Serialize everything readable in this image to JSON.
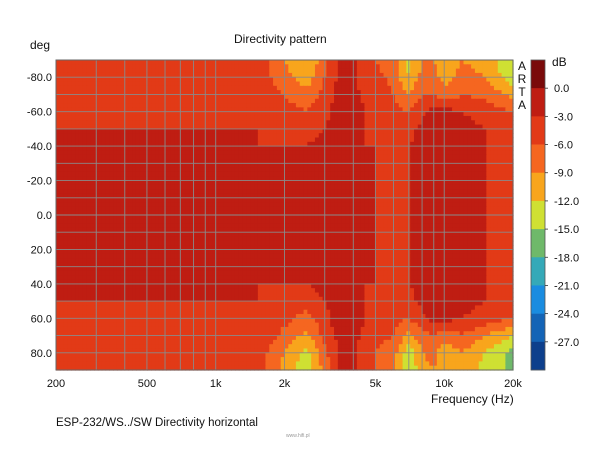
{
  "chart_data": {
    "type": "heatmap",
    "title": "Directivity pattern",
    "y_unit_label": "deg",
    "xlabel": "Frequency (Hz)",
    "x_scale": "log",
    "xlim": [
      200,
      20000
    ],
    "x_tick_labels": [
      {
        "value": 200,
        "label": "200"
      },
      {
        "value": 500,
        "label": "500"
      },
      {
        "value": 1000,
        "label": "1k"
      },
      {
        "value": 2000,
        "label": "2k"
      },
      {
        "value": 5000,
        "label": "5k"
      },
      {
        "value": 10000,
        "label": "10k"
      },
      {
        "value": 20000,
        "label": "20k"
      }
    ],
    "y_tick_labels": [
      {
        "value": -80,
        "label": "-80.0"
      },
      {
        "value": -60,
        "label": "-60.0"
      },
      {
        "value": -40,
        "label": "-40.0"
      },
      {
        "value": -20,
        "label": "-20.0"
      },
      {
        "value": 0,
        "label": "0.0"
      },
      {
        "value": 20,
        "label": "20.0"
      },
      {
        "value": 40,
        "label": "40.0"
      },
      {
        "value": 60,
        "label": "60.0"
      },
      {
        "value": 80,
        "label": "80.0"
      }
    ],
    "ylim": [
      -90,
      90
    ],
    "colorbar": {
      "unit": "dB",
      "labels": [
        "0.0",
        "-3.0",
        "-6.0",
        "-9.0",
        "-12.0",
        "-15.0",
        "-18.0",
        "-21.0",
        "-24.0",
        "-27.0"
      ],
      "colors": [
        "#7a0a0a",
        "#bf1d12",
        "#e23a17",
        "#f56620",
        "#f8a51c",
        "#cfe033",
        "#6fb96a",
        "#35a9b8",
        "#1a8ce0",
        "#1464b6",
        "#0d3f8c"
      ]
    },
    "levels": {
      "freq_hz": [
        200,
        300,
        500,
        700,
        1000,
        1500,
        2000,
        2500,
        3000,
        3500,
        4000,
        4500,
        5000,
        6000,
        7000,
        8000,
        9000,
        10000,
        12000,
        15000,
        20000
      ],
      "angles_deg": [
        -90,
        -80,
        -70,
        -60,
        -50,
        -40,
        -30,
        -20,
        -10,
        0,
        10,
        20,
        30,
        40,
        50,
        60,
        70,
        80,
        90
      ],
      "db": [
        [
          -3,
          -3,
          -3,
          -3,
          -3,
          -4,
          -9,
          -12,
          -7,
          -2,
          -2,
          -6,
          -6,
          -8,
          -13,
          -9,
          -9,
          -12,
          -9,
          -10,
          -15
        ],
        [
          -3,
          -3,
          -3,
          -3,
          -3,
          -4,
          -8,
          -11,
          -6,
          -2,
          -2,
          -5,
          -5,
          -7,
          -12,
          -8,
          -8,
          -10,
          -8,
          -9,
          -14
        ],
        [
          -3,
          -3,
          -3,
          -3,
          -3,
          -3,
          -6,
          -8,
          -5,
          -2,
          -2,
          -4,
          -4,
          -6,
          -9,
          -6,
          -6,
          -8,
          -6,
          -7,
          -10
        ],
        [
          -3,
          -3,
          -3,
          -3,
          -3,
          -3,
          -5,
          -6,
          -4,
          -1,
          -1,
          -3,
          -4,
          -5,
          -6,
          -4,
          -1,
          -2,
          -3,
          -4,
          -6
        ],
        [
          -3,
          -3,
          -3,
          -3,
          -3,
          -3,
          -4,
          -4,
          -3,
          -1,
          -1,
          -3,
          -4,
          -4,
          -4,
          -2,
          -1,
          -1,
          -2,
          -3,
          -4
        ],
        [
          -2,
          -2,
          -2,
          -2,
          -2,
          -3,
          -3,
          -3,
          -2,
          -1,
          -1,
          -3,
          -3,
          -4,
          -3,
          -2,
          -1,
          -1,
          -2,
          -3,
          -4
        ],
        [
          -2,
          -2,
          -2,
          -2,
          -2,
          -2,
          -2,
          -2,
          -2,
          -1,
          -1,
          -2,
          -3,
          -3,
          -3,
          -2,
          -1,
          -1,
          -2,
          -3,
          -4
        ],
        [
          -1.5,
          -1.5,
          -2,
          -2,
          -2,
          -2,
          -2,
          -2,
          -2,
          -1,
          -1,
          -2,
          -3,
          -3,
          -3,
          -2,
          -1,
          -1,
          -2,
          -3,
          -4
        ],
        [
          -0.5,
          -0.5,
          -1.5,
          -2,
          -2,
          -2,
          -2,
          -2,
          -2,
          -1,
          -1,
          -2,
          -3,
          -3,
          -3,
          -2,
          -1,
          -1,
          -2,
          -3,
          -3
        ],
        [
          -0.5,
          -0.5,
          -1.5,
          -2,
          -2,
          -2,
          -2,
          -2,
          -2,
          -1,
          -1,
          -2,
          -3,
          -3,
          -3,
          -2,
          -1,
          -1,
          -2,
          -3,
          -3
        ],
        [
          -0.5,
          -0.5,
          -1.5,
          -2,
          -2,
          -2,
          -2,
          -2,
          -2,
          -1,
          -1,
          -2,
          -3,
          -3,
          -3,
          -2,
          -1,
          -1,
          -2,
          -3,
          -3
        ],
        [
          -1.5,
          -1.5,
          -2,
          -2,
          -2,
          -2,
          -2,
          -2,
          -2,
          -1,
          -1,
          -2,
          -3,
          -3,
          -3,
          -2,
          -1,
          -1,
          -2,
          -3,
          -4
        ],
        [
          -2,
          -2,
          -2,
          -2,
          -2,
          -2,
          -2,
          -2,
          -2,
          -1,
          -1,
          -2,
          -3,
          -3,
          -3,
          -2,
          -1,
          -1,
          -2,
          -3,
          -4
        ],
        [
          -2,
          -2,
          -2,
          -2,
          -2,
          -3,
          -3,
          -3,
          -2,
          -1,
          -1,
          -3,
          -3,
          -4,
          -3,
          -2,
          -1,
          -1,
          -2,
          -3,
          -4
        ],
        [
          -3,
          -3,
          -3,
          -3,
          -3,
          -3,
          -4,
          -5,
          -3,
          -1,
          -1,
          -3,
          -4,
          -4,
          -4,
          -2,
          -1,
          -1,
          -2,
          -3,
          -4
        ],
        [
          -3,
          -3,
          -3,
          -3,
          -3,
          -3,
          -5,
          -7,
          -4,
          -1,
          -1,
          -3,
          -4,
          -5,
          -6,
          -4,
          -1,
          -2,
          -3,
          -4,
          -6
        ],
        [
          -3,
          -3,
          -3,
          -3,
          -3,
          -3,
          -7,
          -10,
          -5,
          -2,
          -2,
          -4,
          -5,
          -6,
          -10,
          -7,
          -6,
          -8,
          -6,
          -9,
          -12
        ],
        [
          -3,
          -3,
          -3,
          -3,
          -3,
          -4,
          -9,
          -13,
          -7,
          -2,
          -2,
          -5,
          -6,
          -8,
          -14,
          -9,
          -8,
          -11,
          -9,
          -12,
          -16
        ],
        [
          -3,
          -3,
          -3,
          -3,
          -3,
          -4,
          -10,
          -14,
          -8,
          -2,
          -2,
          -6,
          -6,
          -9,
          -15,
          -10,
          -9,
          -12,
          -10,
          -13,
          -16
        ]
      ]
    },
    "grid": true
  },
  "brand_letters": [
    "A",
    "R",
    "T",
    "A"
  ],
  "caption": "ESP-232/WS../SW   Directivity horizontal",
  "watermark": "www.hifi.pl"
}
